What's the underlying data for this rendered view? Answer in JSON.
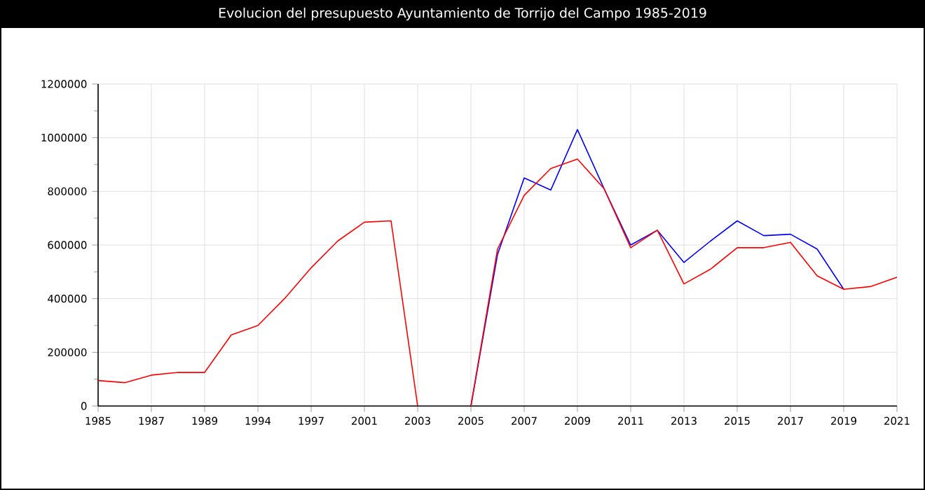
{
  "chart_data": {
    "type": "line",
    "title": "Evolucion del presupuesto Ayuntamiento de Torrijo del Campo 1985-2019",
    "categories": [
      "1985",
      null,
      "1987",
      null,
      "1989",
      null,
      "1994",
      null,
      "1997",
      null,
      "2001",
      null,
      "2003",
      null,
      "2005",
      null,
      "2007",
      null,
      "2009",
      null,
      "2011",
      null,
      "2013",
      null,
      "2015",
      null,
      "2017",
      null,
      "2019",
      null,
      "2021"
    ],
    "series": [
      {
        "color": "#0000ff",
        "values": [
          null,
          null,
          null,
          null,
          null,
          null,
          null,
          null,
          null,
          null,
          null,
          null,
          null,
          null,
          0,
          565000,
          850000,
          805000,
          1030000,
          810000,
          600000,
          655000,
          535000,
          615000,
          690000,
          635000,
          640000,
          585000,
          435000,
          null,
          null
        ]
      },
      {
        "color": "#ff0000",
        "values": [
          95000,
          87000,
          115000,
          125000,
          125000,
          265000,
          300000,
          400000,
          515000,
          615000,
          685000,
          690000,
          0,
          null,
          0,
          585000,
          785000,
          885000,
          920000,
          810000,
          590000,
          655000,
          455000,
          510000,
          590000,
          590000,
          610000,
          485000,
          435000,
          445000,
          480000
        ]
      }
    ],
    "ylim": [
      0,
      1200000
    ],
    "yticks": [
      0,
      200000,
      400000,
      600000,
      800000,
      1000000,
      1200000
    ],
    "grid": true,
    "marker": "none",
    "line_style": "solid"
  }
}
